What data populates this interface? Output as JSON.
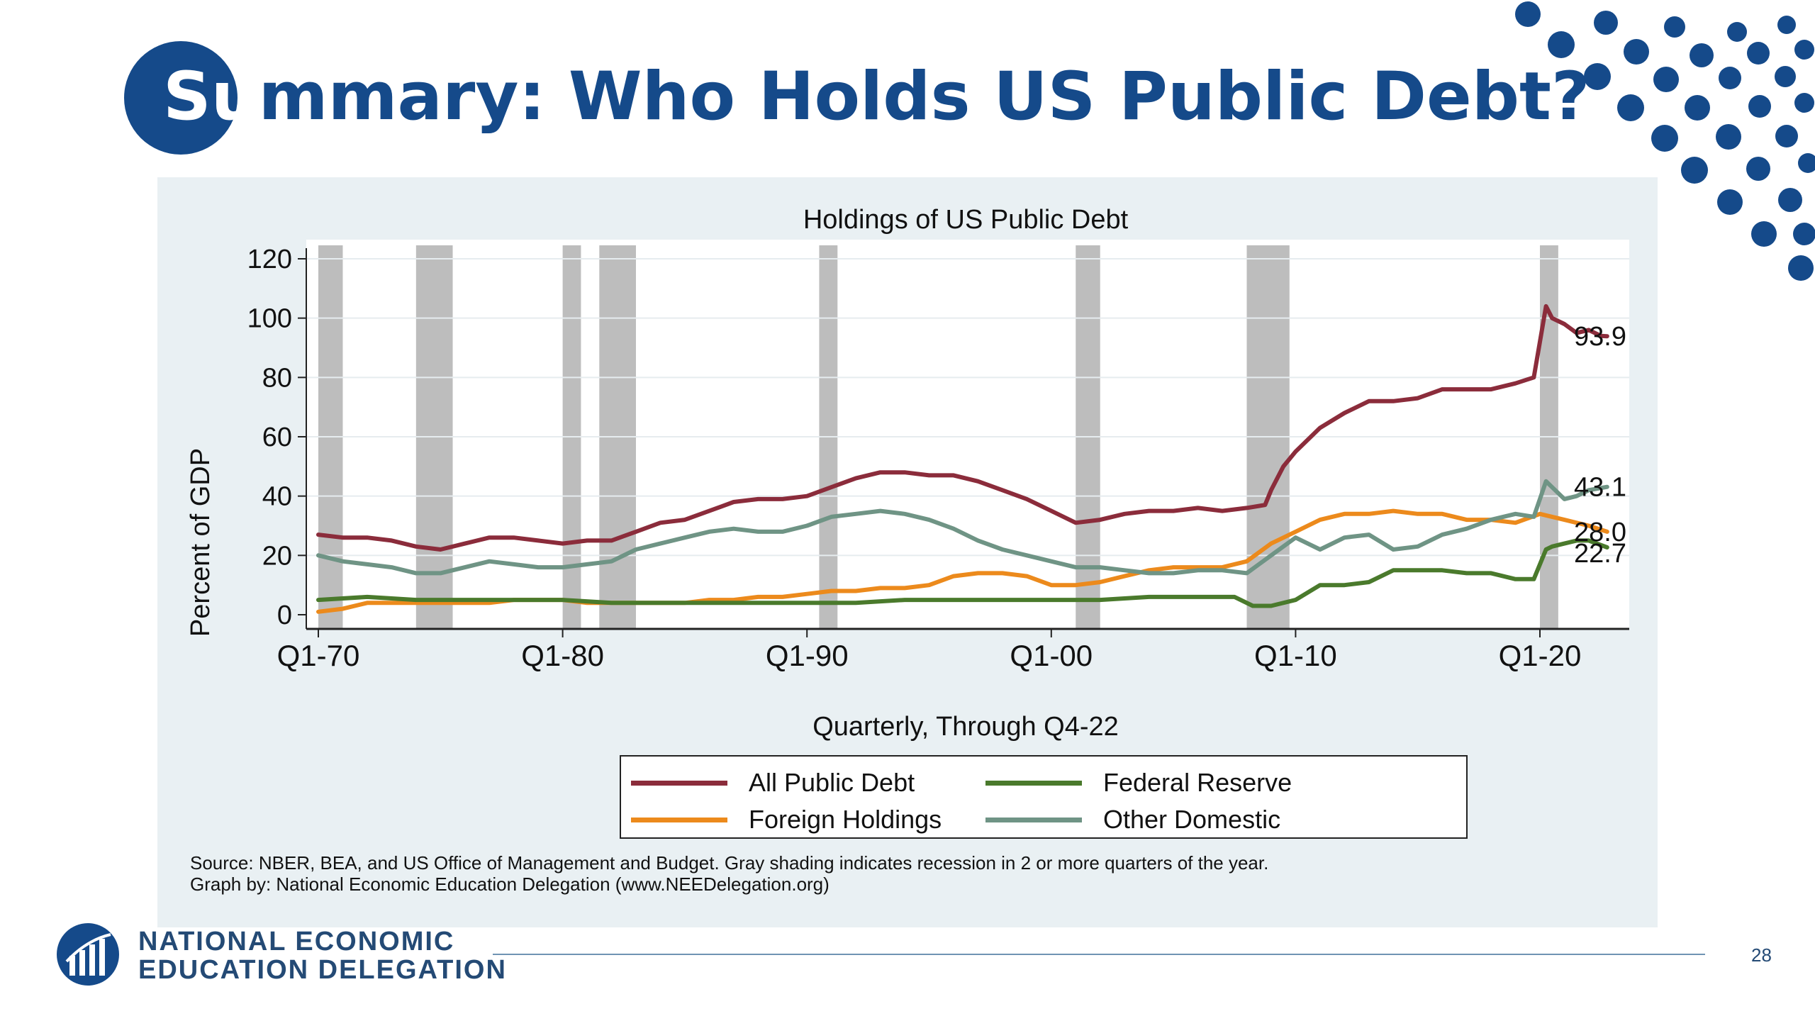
{
  "slide": {
    "title_part1": "Su",
    "title_part2": "mmary: Who Holds US Public Debt?",
    "page_number": "28",
    "organization": {
      "line1": "NATIONAL ECONOMIC",
      "line2": "EDUCATION DELEGATION"
    },
    "source_line1": "Source: NBER, BEA, and US Office of Management and Budget. Gray shading indicates recession in 2 or more quarters of the year.",
    "source_line2": "Graph by: National Economic Education Delegation (www.NEEDelegation.org)",
    "accent_color": "#154a8a"
  },
  "chart_data": {
    "type": "line",
    "title": "Holdings of US Public Debt",
    "xlabel": "Quarterly, Through Q4-22",
    "ylabel": "Percent of GDP",
    "x_ticks": [
      "Q1-70",
      "Q1-80",
      "Q1-90",
      "Q1-00",
      "Q1-10",
      "Q1-20"
    ],
    "y_ticks": [
      0,
      20,
      40,
      60,
      80,
      100,
      120
    ],
    "xlim": [
      1970,
      2023.25
    ],
    "ylim": [
      0,
      120
    ],
    "legend_position": "bottom",
    "grid": true,
    "recession_shading_color": "#bdbdbd",
    "recessions": [
      [
        1970,
        1971
      ],
      [
        1974,
        1975.5
      ],
      [
        1980,
        1980.75
      ],
      [
        1981.5,
        1983
      ],
      [
        1990.5,
        1991.25
      ],
      [
        2001,
        2002
      ],
      [
        2008,
        2009.75
      ],
      [
        2020,
        2020.75
      ]
    ],
    "end_labels": [
      "93.9",
      "43.1",
      "28.0",
      "22.7"
    ],
    "series": [
      {
        "name": "All Public Debt",
        "color": "#8b2c3b",
        "x": [
          1970,
          1971,
          1972,
          1973,
          1974,
          1975,
          1976,
          1977,
          1978,
          1979,
          1980,
          1981,
          1982,
          1983,
          1984,
          1985,
          1986,
          1987,
          1988,
          1989,
          1990,
          1991,
          1992,
          1993,
          1994,
          1995,
          1996,
          1997,
          1998,
          1999,
          2000,
          2001,
          2002,
          2003,
          2004,
          2005,
          2006,
          2007,
          2008,
          2008.75,
          2009,
          2009.5,
          2010,
          2011,
          2012,
          2013,
          2014,
          2015,
          2016,
          2017,
          2018,
          2019,
          2019.75,
          2020.25,
          2020.5,
          2021,
          2021.5,
          2022,
          2022.5,
          2022.75
        ],
        "values": [
          27,
          26,
          26,
          25,
          23,
          22,
          24,
          26,
          26,
          25,
          24,
          25,
          25,
          28,
          31,
          32,
          35,
          38,
          39,
          39,
          40,
          43,
          46,
          48,
          48,
          47,
          47,
          45,
          42,
          39,
          35,
          31,
          32,
          34,
          35,
          35,
          36,
          35,
          36,
          37,
          42,
          50,
          55,
          63,
          68,
          72,
          72,
          73,
          76,
          76,
          76,
          78,
          80,
          104,
          100,
          98,
          95,
          96,
          94,
          93.9
        ]
      },
      {
        "name": "Foreign Holdings",
        "color": "#ec8a1c",
        "x": [
          1970,
          1971,
          1972,
          1973,
          1974,
          1975,
          1976,
          1977,
          1978,
          1979,
          1980,
          1981,
          1982,
          1983,
          1984,
          1985,
          1986,
          1987,
          1988,
          1989,
          1990,
          1991,
          1992,
          1993,
          1994,
          1995,
          1996,
          1997,
          1998,
          1999,
          2000,
          2001,
          2002,
          2003,
          2004,
          2005,
          2006,
          2007,
          2008,
          2009,
          2010,
          2011,
          2012,
          2013,
          2014,
          2015,
          2016,
          2017,
          2018,
          2019,
          2020,
          2020.5,
          2021,
          2022,
          2022.75
        ],
        "values": [
          1,
          2,
          4,
          4,
          4,
          4,
          4,
          4,
          5,
          5,
          5,
          4,
          4,
          4,
          4,
          4,
          5,
          5,
          6,
          6,
          7,
          8,
          8,
          9,
          9,
          10,
          13,
          14,
          14,
          13,
          10,
          10,
          11,
          13,
          15,
          16,
          16,
          16,
          18,
          24,
          28,
          32,
          34,
          34,
          35,
          34,
          34,
          32,
          32,
          31,
          34,
          33,
          32,
          30,
          28.0
        ]
      },
      {
        "name": "Federal Reserve",
        "color": "#4a7a2c",
        "x": [
          1970,
          1972,
          1974,
          1976,
          1978,
          1980,
          1982,
          1984,
          1986,
          1988,
          1990,
          1992,
          1994,
          1996,
          1998,
          2000,
          2002,
          2004,
          2006,
          2007.5,
          2008.25,
          2009,
          2010,
          2011,
          2012,
          2013,
          2014,
          2015,
          2016,
          2017,
          2018,
          2019,
          2019.75,
          2020.25,
          2020.5,
          2021,
          2021.5,
          2022,
          2022.75
        ],
        "values": [
          5,
          6,
          5,
          5,
          5,
          5,
          4,
          4,
          4,
          4,
          4,
          4,
          5,
          5,
          5,
          5,
          5,
          6,
          6,
          6,
          3,
          3,
          5,
          10,
          10,
          11,
          15,
          15,
          15,
          14,
          14,
          12,
          12,
          22,
          23,
          24,
          25,
          25,
          22.7
        ]
      },
      {
        "name": "Other Domestic",
        "color": "#6f9485",
        "x": [
          1970,
          1971,
          1972,
          1973,
          1974,
          1975,
          1976,
          1977,
          1978,
          1979,
          1980,
          1981,
          1982,
          1983,
          1984,
          1985,
          1986,
          1987,
          1988,
          1989,
          1990,
          1991,
          1992,
          1993,
          1994,
          1995,
          1996,
          1997,
          1998,
          1999,
          2000,
          2001,
          2002,
          2003,
          2004,
          2005,
          2006,
          2007,
          2008,
          2009,
          2010,
          2011,
          2012,
          2013,
          2014,
          2015,
          2016,
          2017,
          2018,
          2019,
          2019.75,
          2020.25,
          2020.5,
          2021,
          2021.5,
          2022,
          2022.75
        ],
        "values": [
          20,
          18,
          17,
          16,
          14,
          14,
          16,
          18,
          17,
          16,
          16,
          17,
          18,
          22,
          24,
          26,
          28,
          29,
          28,
          28,
          30,
          33,
          34,
          35,
          34,
          32,
          29,
          25,
          22,
          20,
          18,
          16,
          16,
          15,
          14,
          14,
          15,
          15,
          14,
          20,
          26,
          22,
          26,
          27,
          22,
          23,
          27,
          29,
          32,
          34,
          33,
          45,
          43,
          39,
          40,
          42,
          43.1
        ]
      }
    ]
  }
}
